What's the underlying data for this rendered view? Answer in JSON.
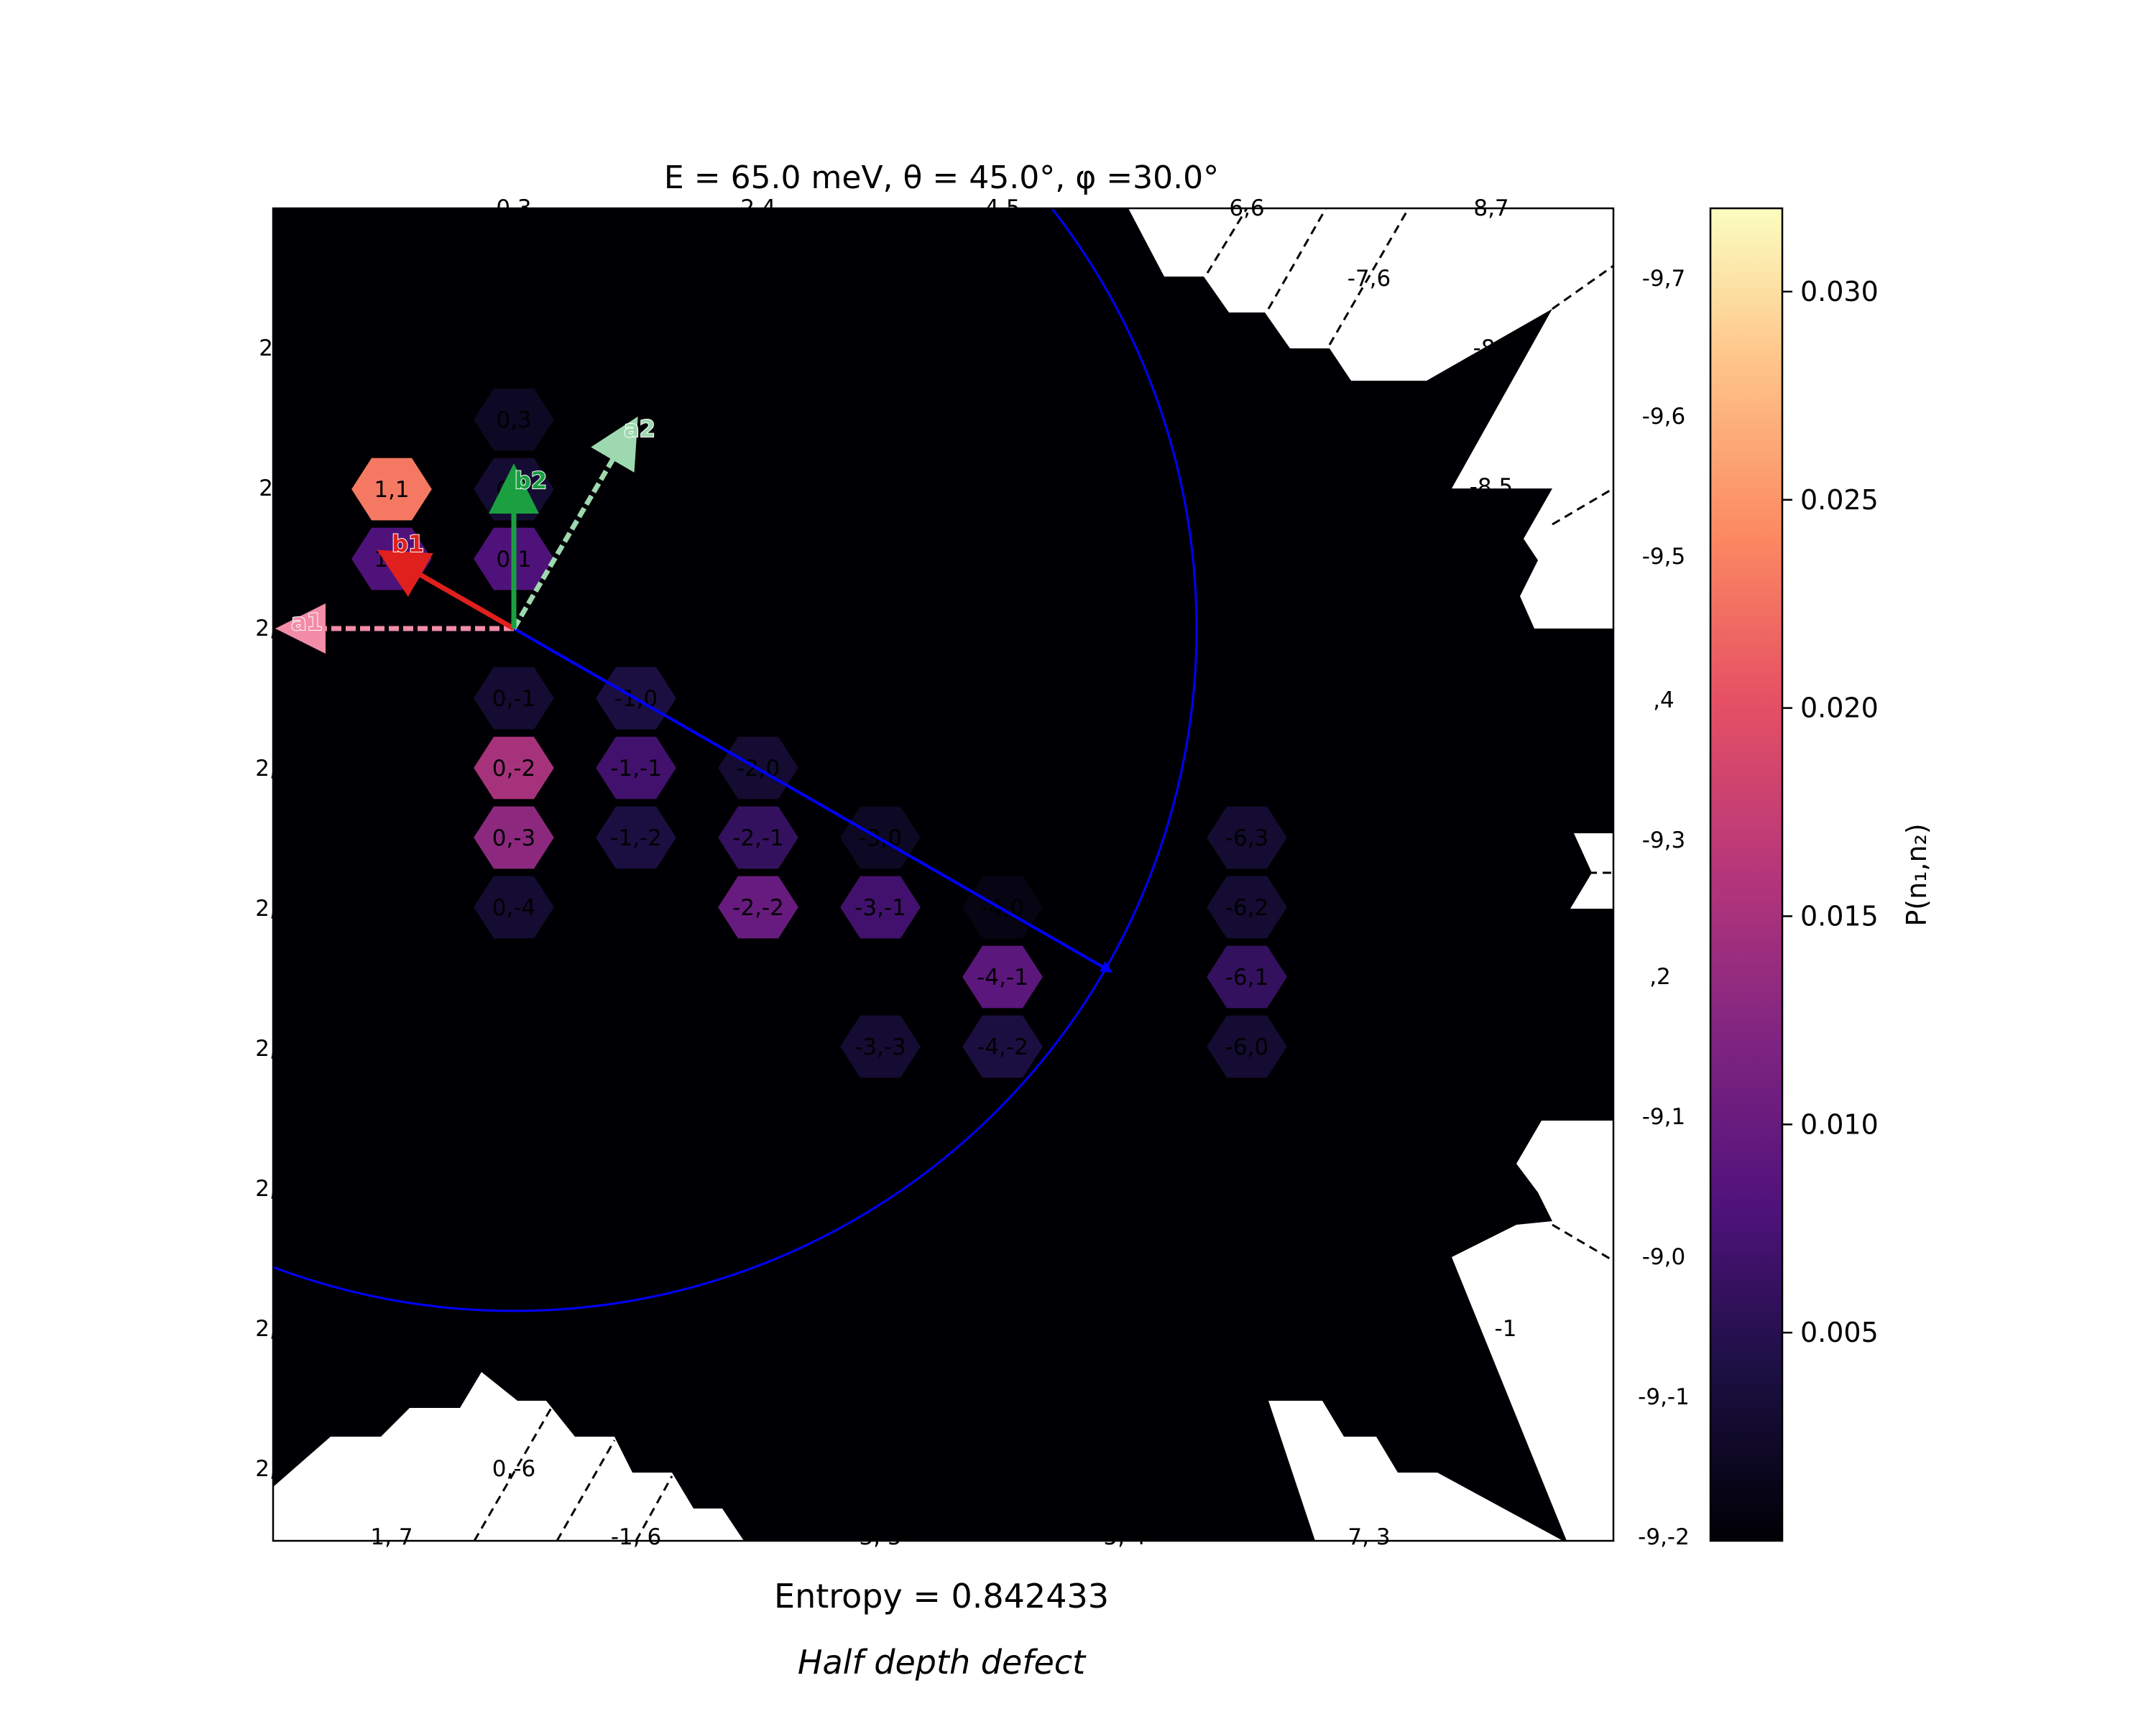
{
  "title": "E = 65.0 meV, θ = 45.0°, φ =30.0°",
  "entropy_text": "Entropy = 0.842433",
  "subtitle": "Half depth defect",
  "colorbar": {
    "label": "P(n₁,n₂)",
    "ticks": [
      "0.005",
      "0.010",
      "0.015",
      "0.020",
      "0.025",
      "0.030"
    ],
    "tick_values": [
      0.005,
      0.01,
      0.015,
      0.02,
      0.025,
      0.03
    ],
    "vmin": 0.0,
    "vmax": 0.032,
    "colormap": "magma"
  },
  "vectors": [
    {
      "name": "a1",
      "color": "#f28ca8",
      "style": "dashed"
    },
    {
      "name": "a2",
      "color": "#9ed8b0",
      "style": "dashed"
    },
    {
      "name": "b1",
      "color": "#e0201c",
      "style": "solid"
    },
    {
      "name": "b2",
      "color": "#1aa040",
      "style": "solid"
    }
  ],
  "chart_data": {
    "type": "heatmap",
    "description": "hexagonal diffraction probability map P(n1,n2) with Ewald circle",
    "colors": {
      "background": "#000004",
      "circle": "#0000ff",
      "hex_edge": "#000000"
    },
    "cells": [
      {
        "label": "0,1",
        "value": 0.008
      },
      {
        "label": "1,1",
        "value": 0.023
      },
      {
        "label": "0,2",
        "value": 0.003
      },
      {
        "label": "0,3",
        "value": 0.002
      },
      {
        "label": "1,0",
        "value": 0.008
      },
      {
        "label": "0,-1",
        "value": 0.003
      },
      {
        "label": "-1,0",
        "value": 0.004
      },
      {
        "label": "-1,-1",
        "value": 0.007
      },
      {
        "label": "-2,0",
        "value": 0.003
      },
      {
        "label": "-2,-1",
        "value": 0.006
      },
      {
        "label": "-3,0",
        "value": 0.002
      },
      {
        "label": "-3,-1",
        "value": 0.007
      },
      {
        "label": "-4,0",
        "value": 0.001
      },
      {
        "label": "0,-2",
        "value": 0.015
      },
      {
        "label": "0,-3",
        "value": 0.013
      },
      {
        "label": "0,-4",
        "value": 0.003
      },
      {
        "label": "-2,-2",
        "value": 0.01
      },
      {
        "label": "-1,-2",
        "value": 0.004
      },
      {
        "label": "-4,-1",
        "value": 0.009
      },
      {
        "label": "-4,-2",
        "value": 0.004
      },
      {
        "label": "-3,-3",
        "value": 0.003
      },
      {
        "label": "-6,3",
        "value": 0.003
      },
      {
        "label": "-6,2",
        "value": 0.003
      },
      {
        "label": "-6,1",
        "value": 0.006
      },
      {
        "label": "-6,0",
        "value": 0.003
      }
    ],
    "labels_visible": [
      "0,3",
      "2,4",
      "4,5",
      "6,6",
      "8,7",
      "-7,6",
      "-9,7",
      "-8,",
      "-9,6",
      "-8,5",
      "-9,5",
      ",4",
      "-9,3",
      ",2",
      "-9,1",
      "-9,0",
      "-1",
      "-9,-1",
      "-8,",
      "-9,-2",
      "1, 7",
      "-1, 6",
      "3, 5",
      "5, 4",
      "7, 3",
      "0,-6",
      ",-6",
      "2,",
      "2,",
      "2,",
      "2,",
      "2,",
      "2,",
      "2,",
      "2,",
      "2,"
    ],
    "xlabel": "",
    "ylabel": "",
    "grid": false
  }
}
